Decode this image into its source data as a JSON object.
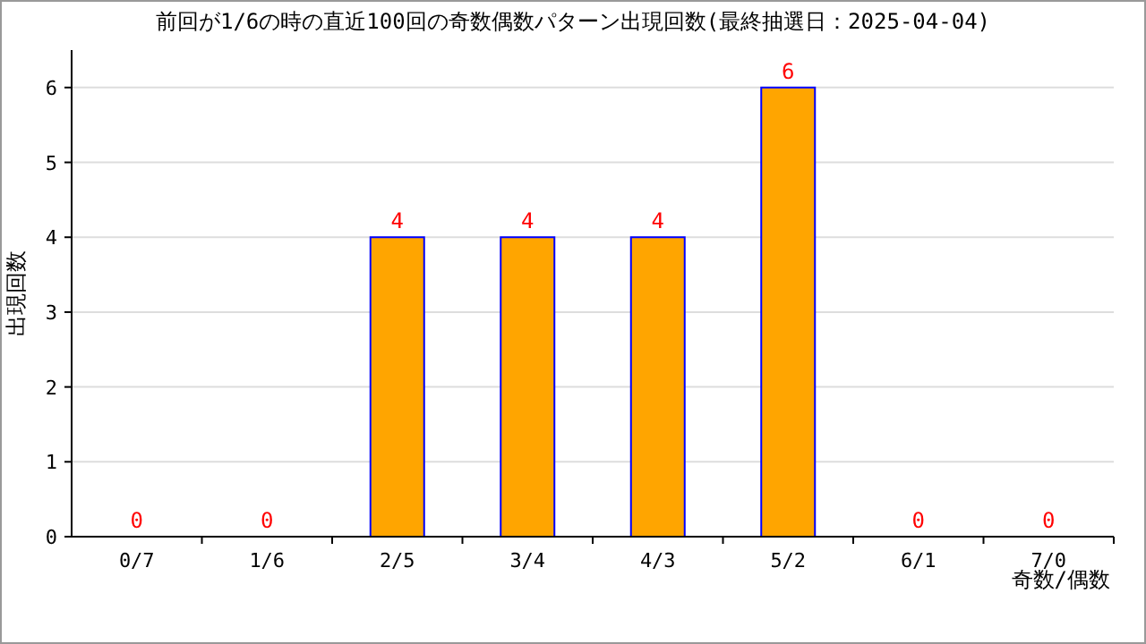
{
  "chart_data": {
    "type": "bar",
    "title": "前回が1/6の時の直近100回の奇数偶数パターン出現回数(最終抽選日：2025-04-04)",
    "xlabel": "奇数/偶数",
    "ylabel": "出現回数",
    "categories": [
      "0/7",
      "1/6",
      "2/5",
      "3/4",
      "4/3",
      "5/2",
      "6/1",
      "7/0"
    ],
    "values": [
      0,
      0,
      4,
      4,
      4,
      6,
      0,
      0
    ],
    "color": "#ffa500",
    "ylim": [
      0,
      6.5
    ],
    "yticks": [
      0,
      1,
      2,
      3,
      4,
      5,
      6
    ],
    "grid": "y",
    "data_labels": true
  }
}
